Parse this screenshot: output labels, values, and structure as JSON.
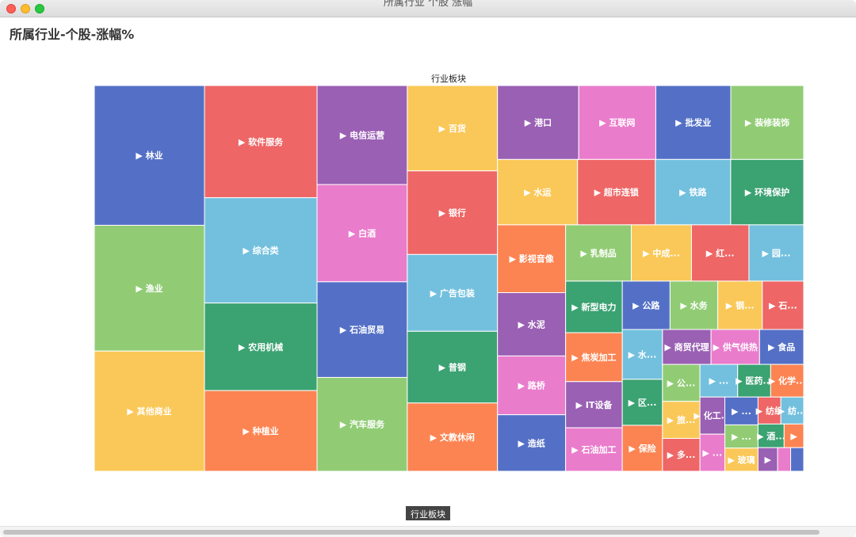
{
  "window": {
    "title": "所属行业 个股 涨幅"
  },
  "heading": "所属行业-个股-涨幅%",
  "breadcrumb": "行业板块",
  "chart_data": {
    "type": "treemap",
    "title": "行业板块",
    "colors": [
      "#5470c6",
      "#91cc75",
      "#fac858",
      "#ee6666",
      "#73c0de",
      "#3ba272",
      "#fc8452",
      "#9a60b4",
      "#ea7ccc"
    ],
    "items": [
      {
        "name": "▶ 林业",
        "value": 100
      },
      {
        "name": "▶ 渔业",
        "value": 90
      },
      {
        "name": "▶ 其他商业",
        "value": 86
      },
      {
        "name": "▶ 软件服务",
        "value": 82
      },
      {
        "name": "▶ 综合类",
        "value": 77
      },
      {
        "name": "▶ 农用机械",
        "value": 64
      },
      {
        "name": "▶ 种植业",
        "value": 59
      },
      {
        "name": "▶ 电信运营",
        "value": 58
      },
      {
        "name": "▶ 白酒",
        "value": 57
      },
      {
        "name": "▶ 石油贸易",
        "value": 56
      },
      {
        "name": "▶ 汽车服务",
        "value": 55
      },
      {
        "name": "▶ 百货",
        "value": 50
      },
      {
        "name": "▶ 银行",
        "value": 49
      },
      {
        "name": "▶ 广告包装",
        "value": 45
      },
      {
        "name": "▶ 普钢",
        "value": 42
      },
      {
        "name": "▶ 文教休闲",
        "value": 40
      },
      {
        "name": "▶ 港口",
        "value": 39
      },
      {
        "name": "▶ 互联网",
        "value": 37
      },
      {
        "name": "▶ 批发业",
        "value": 36
      },
      {
        "name": "▶ 装修装饰",
        "value": 35
      },
      {
        "name": "▶ 水运",
        "value": 34
      },
      {
        "name": "▶ 超市连锁",
        "value": 33
      },
      {
        "name": "▶ 铁路",
        "value": 32
      },
      {
        "name": "▶ 环境保护",
        "value": 31
      },
      {
        "name": "▶ 影视音像",
        "value": 30
      },
      {
        "name": "▶ 水泥",
        "value": 28
      },
      {
        "name": "▶ 路桥",
        "value": 26
      },
      {
        "name": "▶ 造纸",
        "value": 25
      },
      {
        "name": "▶ 乳制品",
        "value": 24
      },
      {
        "name": "▶ 中成...",
        "value": 22
      },
      {
        "name": "▶ 红...",
        "value": 21
      },
      {
        "name": "▶ 园...",
        "value": 20
      },
      {
        "name": "▶ 新型电力",
        "value": 19
      },
      {
        "name": "▶ 焦炭加工",
        "value": 18
      },
      {
        "name": "▶ IT设备",
        "value": 17
      },
      {
        "name": "▶ 石油加工",
        "value": 16
      },
      {
        "name": "▶ 公路",
        "value": 15
      },
      {
        "name": "▶ 水务",
        "value": 15
      },
      {
        "name": "▶ 钢...",
        "value": 14
      },
      {
        "name": "▶ 石...",
        "value": 13
      },
      {
        "name": "▶ 水...",
        "value": 13
      },
      {
        "name": "▶ 区...",
        "value": 12
      },
      {
        "name": "▶ 保险",
        "value": 12
      },
      {
        "name": "▶ 商贸代理",
        "value": 11
      },
      {
        "name": "▶ 供气供热",
        "value": 11
      },
      {
        "name": "▶ 食品",
        "value": 10
      },
      {
        "name": "▶ 公...",
        "value": 9
      },
      {
        "name": "▶ 旅...",
        "value": 9
      },
      {
        "name": "▶ 多...",
        "value": 8
      },
      {
        "name": "▶ ...",
        "value": 8
      },
      {
        "name": "▶ 医药...",
        "value": 7
      },
      {
        "name": "▶ 化学...",
        "value": 7
      },
      {
        "name": "▶ 化工...",
        "value": 6
      },
      {
        "name": "▶ ...",
        "value": 6
      },
      {
        "name": "▶ ...",
        "value": 6
      },
      {
        "name": "▶ ...",
        "value": 5
      },
      {
        "name": "▶ 玻璃",
        "value": 5
      },
      {
        "name": "▶ 纺织",
        "value": 4
      },
      {
        "name": "▶ 纺...",
        "value": 4
      },
      {
        "name": "▶ 酒...",
        "value": 4
      },
      {
        "name": "▶",
        "value": 3
      },
      {
        "name": "▶",
        "value": 3
      },
      {
        "name": "",
        "value": 2
      },
      {
        "name": "",
        "value": 2
      }
    ]
  }
}
